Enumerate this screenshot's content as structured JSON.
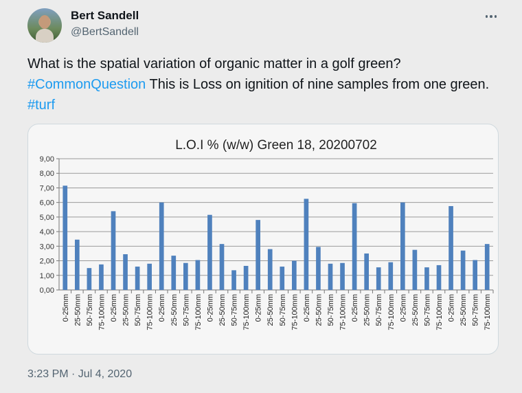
{
  "author": {
    "name": "Bert Sandell",
    "handle": "@BertSandell"
  },
  "tweet": {
    "text_1": "What is the spatial variation of organic matter in a golf green? ",
    "hashtag_1": "#CommonQuestion",
    "text_2": " This is Loss on ignition of nine samples from one green. ",
    "hashtag_2": "#turf",
    "timestamp": "3:23 PM · Jul 4, 2020"
  },
  "icons": {
    "more": "more-horizontal-icon"
  },
  "colors": {
    "bar": "#4f81bd",
    "hashtag": "#1d9bf0"
  },
  "chart_data": {
    "type": "bar",
    "title": "L.O.I % (w/w) Green 18, 20200702",
    "xlabel": "",
    "ylabel": "",
    "ylim": [
      0,
      9
    ],
    "yticks": [
      "0,00",
      "1,00",
      "2,00",
      "3,00",
      "4,00",
      "5,00",
      "6,00",
      "7,00",
      "8,00",
      "9,00"
    ],
    "grid": true,
    "categories": [
      "0-25mm",
      "25-50mm",
      "50-75mm",
      "75-100mm",
      "0-25mm",
      "25-50mm",
      "50-75mm",
      "75-100mm",
      "0-25mm",
      "25-50mm",
      "50-75mm",
      "75-100mm",
      "0-25mm",
      "25-50mm",
      "50-75mm",
      "75-100mm",
      "0-25mm",
      "25-50mm",
      "50-75mm",
      "75-100mm",
      "0-25mm",
      "25-50mm",
      "50-75mm",
      "75-100mm",
      "0-25mm",
      "25-50mm",
      "50-75mm",
      "75-100mm",
      "0-25mm",
      "25-50mm",
      "50-75mm",
      "75-100mm",
      "0-25mm",
      "25-50mm",
      "50-75mm",
      "75-100mm"
    ],
    "values": [
      7.15,
      3.45,
      1.5,
      1.75,
      5.4,
      2.45,
      1.6,
      1.8,
      6.0,
      2.35,
      1.85,
      2.05,
      5.15,
      3.15,
      1.35,
      1.65,
      4.8,
      2.8,
      1.6,
      2.0,
      6.25,
      2.95,
      1.8,
      1.85,
      5.95,
      2.5,
      1.55,
      1.9,
      6.0,
      2.75,
      1.55,
      1.7,
      5.75,
      2.7,
      2.05,
      3.15
    ]
  }
}
